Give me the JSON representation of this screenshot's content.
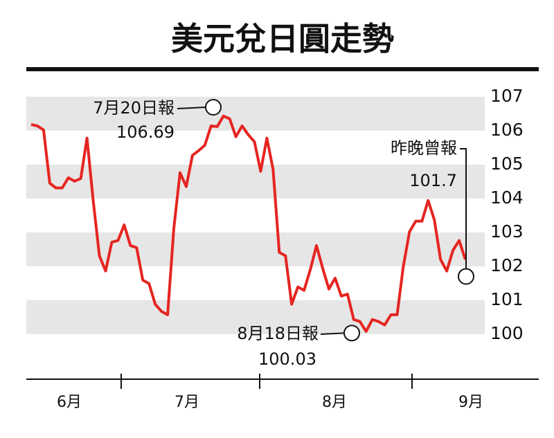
{
  "chart_data": {
    "type": "line",
    "title": "美元兌日圓走勢",
    "months": [
      "6月",
      "7月",
      "8月",
      "9月"
    ],
    "series": [
      {
        "color": "#e52521",
        "values": [
          106.18,
          106.14,
          106.02,
          104.45,
          104.31,
          104.31,
          104.61,
          104.51,
          104.59,
          105.78,
          103.94,
          102.31,
          101.86,
          102.71,
          102.76,
          103.22,
          102.61,
          102.55,
          101.59,
          101.49,
          100.88,
          100.67,
          100.57,
          103.12,
          104.76,
          104.35,
          105.27,
          105.41,
          105.57,
          106.14,
          106.12,
          106.43,
          106.35,
          105.82,
          106.14,
          105.88,
          105.67,
          104.8,
          105.78,
          104.86,
          102.41,
          102.31,
          100.88,
          101.39,
          101.29,
          101.9,
          102.61,
          101.94,
          101.33,
          101.65,
          101.12,
          101.18,
          100.43,
          100.37,
          100.08,
          100.43,
          100.37,
          100.27,
          100.57,
          100.57,
          102.0,
          103.02,
          103.33,
          103.33,
          103.94,
          103.37,
          102.2,
          101.86,
          102.47,
          102.76,
          102.2
        ]
      }
    ],
    "annotations": [
      {
        "label": "7月20日報",
        "value": 106.69
      },
      {
        "label": "8月18日報",
        "value": 100.03
      },
      {
        "label": "昨晚曾報",
        "value": 101.7
      }
    ],
    "ylim": [
      98.67,
      107.2
    ],
    "yticks": [
      100,
      101,
      102,
      103,
      104,
      105,
      106,
      107
    ],
    "band_color": "#e6e6e6"
  }
}
